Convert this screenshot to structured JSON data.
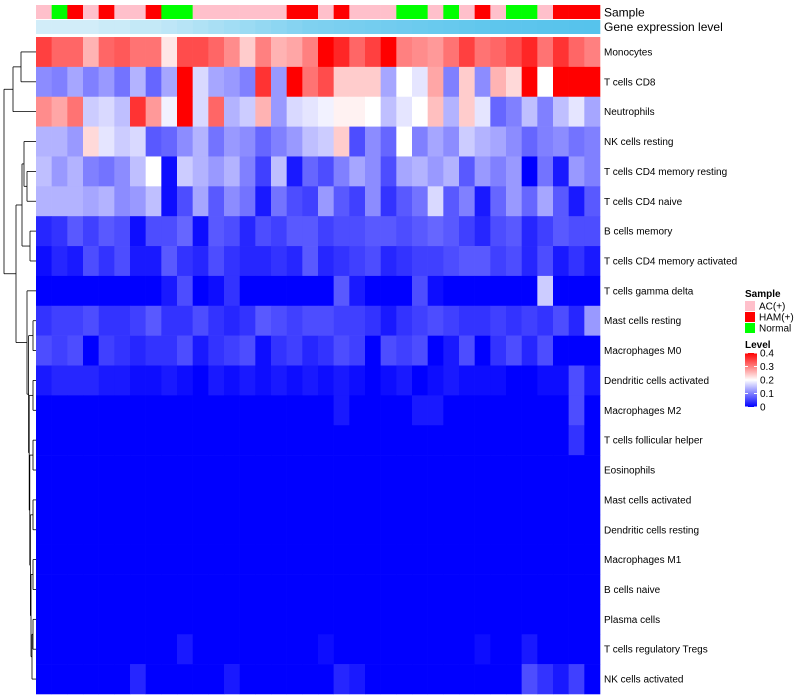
{
  "chart_data": {
    "type": "heatmap",
    "title": "",
    "annotation_tracks": [
      "Sample",
      "Gene expression level"
    ],
    "sample_annotation": [
      "AC(+)",
      "Normal",
      "HAM(+)",
      "AC(+)",
      "HAM(+)",
      "AC(+)",
      "AC(+)",
      "HAM(+)",
      "Normal",
      "Normal",
      "AC(+)",
      "AC(+)",
      "AC(+)",
      "AC(+)",
      "AC(+)",
      "AC(+)",
      "HAM(+)",
      "HAM(+)",
      "AC(+)",
      "HAM(+)",
      "AC(+)",
      "AC(+)",
      "AC(+)",
      "Normal",
      "Normal",
      "AC(+)",
      "Normal",
      "AC(+)",
      "HAM(+)",
      "AC(+)",
      "Normal",
      "Normal",
      "AC(+)",
      "HAM(+)",
      "HAM(+)",
      "HAM(+)"
    ],
    "expression_level_annotation": [
      0.1,
      0.1,
      0.1,
      0.1,
      0.15,
      0.15,
      0.2,
      0.2,
      0.25,
      0.3,
      0.35,
      0.4,
      0.45,
      0.5,
      0.55,
      0.6,
      0.65,
      0.7,
      0.72,
      0.74,
      0.76,
      0.78,
      0.8,
      0.82,
      0.84,
      0.86,
      0.88,
      0.9,
      0.92,
      0.94,
      0.95,
      0.96,
      0.97,
      0.98,
      0.99,
      1.0
    ],
    "rows": [
      "Monocytes",
      "T cells CD8",
      "Neutrophils",
      "NK cells resting",
      "T cells CD4 memory resting",
      "T cells CD4 naive",
      "B cells memory",
      "T cells CD4 memory activated",
      "T cells gamma delta",
      "Mast cells resting",
      "Macrophages M0",
      "Dendritic cells activated",
      "Macrophages M2",
      "T cells follicular helper",
      "Eosinophils",
      "Mast cells activated",
      "Dendritic cells resting",
      "Macrophages M1",
      "B cells naive",
      "Plasma cells",
      "T cells regulatory  Tregs",
      "NK cells activated"
    ],
    "values": [
      [
        0.35,
        0.32,
        0.32,
        0.26,
        0.32,
        0.33,
        0.31,
        0.31,
        0.22,
        0.34,
        0.34,
        0.32,
        0.29,
        0.24,
        0.3,
        0.26,
        0.27,
        0.3,
        0.4,
        0.37,
        0.32,
        0.35,
        0.4,
        0.3,
        0.29,
        0.28,
        0.31,
        0.35,
        0.31,
        0.32,
        0.34,
        0.37,
        0.31,
        0.36,
        0.32,
        0.3
      ],
      [
        0.11,
        0.1,
        0.13,
        0.1,
        0.12,
        0.09,
        0.14,
        0.08,
        0.13,
        0.4,
        0.17,
        0.13,
        0.12,
        0.1,
        0.36,
        0.12,
        0.4,
        0.31,
        0.34,
        0.24,
        0.24,
        0.24,
        0.13,
        0.2,
        0.18,
        0.27,
        0.1,
        0.24,
        0.11,
        0.26,
        0.23,
        0.4,
        0.2,
        0.4,
        0.4,
        0.4
      ],
      [
        0.29,
        0.27,
        0.31,
        0.16,
        0.17,
        0.15,
        0.36,
        0.28,
        0.19,
        0.4,
        0.17,
        0.32,
        0.14,
        0.16,
        0.26,
        0.12,
        0.17,
        0.18,
        0.19,
        0.21,
        0.21,
        0.2,
        0.15,
        0.18,
        0.2,
        0.25,
        0.14,
        0.24,
        0.18,
        0.08,
        0.1,
        0.15,
        0.1,
        0.15,
        0.18,
        0.13
      ],
      [
        0.14,
        0.14,
        0.12,
        0.23,
        0.18,
        0.16,
        0.17,
        0.07,
        0.08,
        0.11,
        0.14,
        0.09,
        0.12,
        0.11,
        0.08,
        0.1,
        0.12,
        0.15,
        0.16,
        0.24,
        0.06,
        0.11,
        0.08,
        0.2,
        0.1,
        0.13,
        0.11,
        0.16,
        0.14,
        0.13,
        0.11,
        0.08,
        0.1,
        0.11,
        0.09,
        0.1
      ],
      [
        0.15,
        0.12,
        0.14,
        0.1,
        0.09,
        0.11,
        0.15,
        0.2,
        0.01,
        0.16,
        0.14,
        0.12,
        0.14,
        0.1,
        0.05,
        0.15,
        0.02,
        0.08,
        0.06,
        0.1,
        0.13,
        0.11,
        0.06,
        0.13,
        0.14,
        0.12,
        0.14,
        0.07,
        0.12,
        0.1,
        0.12,
        0.0,
        0.09,
        0.02,
        0.12,
        0.1
      ],
      [
        0.14,
        0.14,
        0.14,
        0.13,
        0.14,
        0.11,
        0.12,
        0.15,
        0.01,
        0.06,
        0.13,
        0.07,
        0.11,
        0.09,
        0.02,
        0.09,
        0.06,
        0.05,
        0.12,
        0.07,
        0.05,
        0.11,
        0.04,
        0.07,
        0.09,
        0.17,
        0.07,
        0.1,
        0.02,
        0.08,
        0.12,
        0.08,
        0.13,
        0.07,
        0.02,
        0.07
      ],
      [
        0.03,
        0.04,
        0.07,
        0.05,
        0.07,
        0.06,
        0.01,
        0.06,
        0.06,
        0.08,
        0.01,
        0.07,
        0.06,
        0.03,
        0.06,
        0.05,
        0.07,
        0.07,
        0.05,
        0.06,
        0.06,
        0.07,
        0.07,
        0.06,
        0.07,
        0.08,
        0.07,
        0.05,
        0.03,
        0.06,
        0.07,
        0.03,
        0.05,
        0.07,
        0.06,
        0.06
      ],
      [
        0.01,
        0.03,
        0.02,
        0.06,
        0.04,
        0.06,
        0.02,
        0.02,
        0.07,
        0.04,
        0.03,
        0.06,
        0.04,
        0.03,
        0.03,
        0.04,
        0.03,
        0.07,
        0.03,
        0.04,
        0.05,
        0.06,
        0.03,
        0.04,
        0.05,
        0.05,
        0.06,
        0.07,
        0.07,
        0.05,
        0.06,
        0.03,
        0.06,
        0.02,
        0.04,
        0.02
      ],
      [
        0.0,
        0.0,
        0.0,
        0.0,
        0.0,
        0.0,
        0.0,
        0.0,
        0.02,
        0.06,
        0.0,
        0.01,
        0.04,
        0.0,
        0.0,
        0.0,
        0.0,
        0.0,
        0.0,
        0.07,
        0.02,
        0.0,
        0.0,
        0.0,
        0.06,
        0.01,
        0.0,
        0.0,
        0.0,
        0.0,
        0.0,
        0.0,
        0.16,
        0.0,
        0.0,
        0.0
      ],
      [
        0.04,
        0.05,
        0.05,
        0.06,
        0.04,
        0.04,
        0.05,
        0.07,
        0.04,
        0.04,
        0.06,
        0.04,
        0.03,
        0.04,
        0.07,
        0.06,
        0.05,
        0.06,
        0.06,
        0.05,
        0.05,
        0.04,
        0.02,
        0.04,
        0.05,
        0.06,
        0.05,
        0.04,
        0.04,
        0.05,
        0.04,
        0.05,
        0.04,
        0.06,
        0.03,
        0.12
      ],
      [
        0.06,
        0.05,
        0.06,
        0.0,
        0.05,
        0.04,
        0.03,
        0.04,
        0.04,
        0.06,
        0.02,
        0.04,
        0.05,
        0.06,
        0.01,
        0.04,
        0.05,
        0.03,
        0.04,
        0.06,
        0.05,
        0.0,
        0.06,
        0.05,
        0.06,
        0.0,
        0.02,
        0.06,
        0.0,
        0.04,
        0.06,
        0.03,
        0.06,
        0.0,
        0.0,
        0.0
      ],
      [
        0.02,
        0.03,
        0.03,
        0.03,
        0.02,
        0.02,
        0.01,
        0.01,
        0.02,
        0.01,
        0.0,
        0.02,
        0.01,
        0.02,
        0.01,
        0.02,
        0.01,
        0.02,
        0.01,
        0.02,
        0.01,
        0.0,
        0.01,
        0.02,
        0.0,
        0.01,
        0.02,
        0.01,
        0.01,
        0.01,
        0.0,
        0.0,
        0.01,
        0.01,
        0.06,
        0.02
      ],
      [
        0.0,
        0.0,
        0.0,
        0.0,
        0.0,
        0.0,
        0.0,
        0.0,
        0.0,
        0.0,
        0.0,
        0.0,
        0.0,
        0.0,
        0.0,
        0.0,
        0.0,
        0.0,
        0.0,
        0.02,
        0.0,
        0.0,
        0.0,
        0.0,
        0.02,
        0.02,
        0.0,
        0.0,
        0.0,
        0.0,
        0.0,
        0.0,
        0.0,
        0.0,
        0.06,
        0.0
      ],
      [
        0.0,
        0.0,
        0.0,
        0.0,
        0.0,
        0.0,
        0.0,
        0.0,
        0.0,
        0.0,
        0.0,
        0.0,
        0.0,
        0.0,
        0.0,
        0.0,
        0.0,
        0.0,
        0.0,
        0.0,
        0.0,
        0.0,
        0.0,
        0.0,
        0.0,
        0.0,
        0.0,
        0.0,
        0.0,
        0.0,
        0.0,
        0.0,
        0.0,
        0.0,
        0.04,
        0.0
      ],
      [
        0.0,
        0.0,
        0.0,
        0.0,
        0.0,
        0.0,
        0.0,
        0.0,
        0.0,
        0.0,
        0.0,
        0.0,
        0.0,
        0.0,
        0.0,
        0.0,
        0.0,
        0.0,
        0.0,
        0.0,
        0.0,
        0.0,
        0.0,
        0.0,
        0.0,
        0.0,
        0.0,
        0.0,
        0.0,
        0.0,
        0.0,
        0.0,
        0.0,
        0.0,
        0.0,
        0.0
      ],
      [
        0.0,
        0.0,
        0.0,
        0.0,
        0.0,
        0.0,
        0.0,
        0.0,
        0.0,
        0.0,
        0.0,
        0.0,
        0.0,
        0.0,
        0.0,
        0.0,
        0.0,
        0.0,
        0.0,
        0.0,
        0.0,
        0.0,
        0.0,
        0.0,
        0.0,
        0.0,
        0.0,
        0.0,
        0.0,
        0.0,
        0.0,
        0.0,
        0.0,
        0.0,
        0.0,
        0.0
      ],
      [
        0.0,
        0.0,
        0.0,
        0.0,
        0.0,
        0.0,
        0.0,
        0.0,
        0.0,
        0.0,
        0.0,
        0.0,
        0.0,
        0.0,
        0.0,
        0.0,
        0.0,
        0.0,
        0.0,
        0.0,
        0.0,
        0.0,
        0.0,
        0.0,
        0.0,
        0.0,
        0.0,
        0.0,
        0.0,
        0.0,
        0.0,
        0.0,
        0.0,
        0.0,
        0.0,
        0.0
      ],
      [
        0.0,
        0.0,
        0.0,
        0.0,
        0.0,
        0.0,
        0.0,
        0.0,
        0.0,
        0.0,
        0.0,
        0.0,
        0.0,
        0.0,
        0.0,
        0.0,
        0.0,
        0.0,
        0.0,
        0.0,
        0.0,
        0.0,
        0.0,
        0.0,
        0.0,
        0.0,
        0.0,
        0.0,
        0.0,
        0.0,
        0.0,
        0.0,
        0.0,
        0.0,
        0.0,
        0.0
      ],
      [
        0.0,
        0.0,
        0.0,
        0.0,
        0.0,
        0.0,
        0.0,
        0.0,
        0.0,
        0.0,
        0.0,
        0.0,
        0.0,
        0.0,
        0.0,
        0.0,
        0.0,
        0.0,
        0.0,
        0.0,
        0.0,
        0.0,
        0.0,
        0.0,
        0.0,
        0.0,
        0.0,
        0.0,
        0.0,
        0.0,
        0.0,
        0.0,
        0.0,
        0.0,
        0.0,
        0.0
      ],
      [
        0.0,
        0.0,
        0.0,
        0.0,
        0.0,
        0.0,
        0.0,
        0.0,
        0.0,
        0.0,
        0.0,
        0.0,
        0.0,
        0.0,
        0.0,
        0.0,
        0.0,
        0.0,
        0.0,
        0.0,
        0.0,
        0.0,
        0.0,
        0.0,
        0.0,
        0.0,
        0.0,
        0.0,
        0.0,
        0.0,
        0.0,
        0.0,
        0.0,
        0.0,
        0.0,
        0.0
      ],
      [
        0.0,
        0.0,
        0.0,
        0.0,
        0.0,
        0.0,
        0.0,
        0.0,
        0.0,
        0.02,
        0.0,
        0.0,
        0.0,
        0.0,
        0.0,
        0.0,
        0.0,
        0.0,
        0.01,
        0.0,
        0.0,
        0.0,
        0.0,
        0.0,
        0.0,
        0.0,
        0.0,
        0.0,
        0.01,
        0.0,
        0.0,
        0.02,
        0.0,
        0.0,
        0.0,
        0.0
      ],
      [
        0.0,
        0.0,
        0.0,
        0.0,
        0.0,
        0.0,
        0.03,
        0.0,
        0.0,
        0.0,
        0.0,
        0.0,
        0.02,
        0.0,
        0.0,
        0.0,
        0.0,
        0.0,
        0.0,
        0.03,
        0.02,
        0.0,
        0.0,
        0.0,
        0.0,
        0.0,
        0.0,
        0.0,
        0.0,
        0.0,
        0.0,
        0.06,
        0.04,
        0.02,
        0.05,
        0.0
      ]
    ],
    "color_scale": {
      "min": 0,
      "mid": 0.2,
      "max": 0.4,
      "low": "#0000FF",
      "midcolor": "#FFFFFF",
      "high": "#FF0000"
    },
    "legends": {
      "sample": {
        "title": "Sample",
        "entries": [
          {
            "label": "AC(+)",
            "color": "#FFC0CB"
          },
          {
            "label": "HAM(+)",
            "color": "#FF0000"
          },
          {
            "label": "Normal",
            "color": "#00FF00"
          }
        ]
      },
      "level": {
        "title": "Level",
        "ticks": [
          0.4,
          0.3,
          0.2,
          0.1,
          0
        ]
      }
    },
    "expression_track_colors": {
      "low": "#E0F2FA",
      "high": "#56C3EC"
    }
  }
}
